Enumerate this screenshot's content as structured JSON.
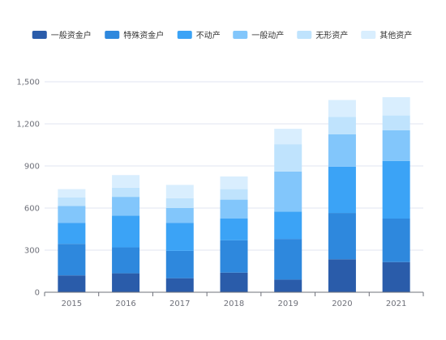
{
  "chart_data": {
    "type": "bar",
    "stacked": true,
    "title": "",
    "xlabel": "",
    "ylabel": "",
    "ylim": [
      0,
      1500
    ],
    "yticks": [
      0,
      300,
      600,
      900,
      1200,
      1500
    ],
    "ytick_labels": [
      "0",
      "300",
      "600",
      "900",
      "1,200",
      "1,500"
    ],
    "grid": true,
    "legend_position": "top-center",
    "categories": [
      "2015",
      "2016",
      "2017",
      "2018",
      "2019",
      "2020",
      "2021"
    ],
    "series": [
      {
        "name": "一般资金户",
        "color": "#2a5caa",
        "values": [
          120,
          135,
          100,
          140,
          90,
          235,
          215
        ]
      },
      {
        "name": "特殊资金户",
        "color": "#2e88dd",
        "values": [
          225,
          185,
          195,
          230,
          290,
          330,
          310
        ]
      },
      {
        "name": "不动产",
        "color": "#3ba3f6",
        "values": [
          150,
          225,
          200,
          155,
          195,
          330,
          410
        ]
      },
      {
        "name": "一般动产",
        "color": "#82c6fb",
        "values": [
          120,
          135,
          105,
          135,
          285,
          230,
          220
        ]
      },
      {
        "name": "无形资产",
        "color": "#bfe3fd",
        "values": [
          60,
          65,
          70,
          75,
          195,
          125,
          105
        ]
      },
      {
        "name": "其他资产",
        "color": "#d9eefe",
        "values": [
          60,
          90,
          95,
          90,
          110,
          120,
          130
        ]
      }
    ]
  }
}
